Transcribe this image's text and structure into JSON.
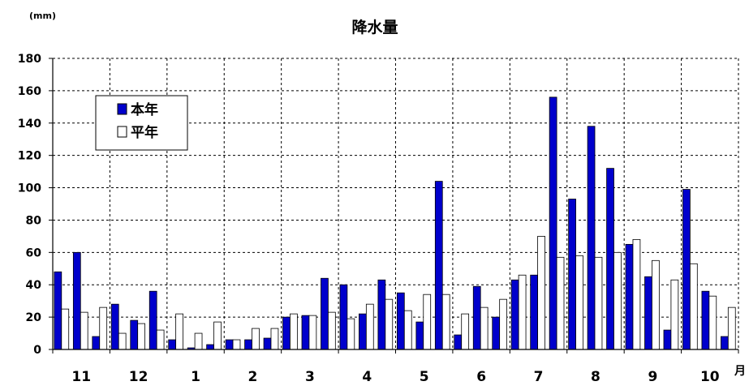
{
  "chart_data": {
    "type": "bar",
    "title": "降水量",
    "unit_label": "(mm)",
    "x_unit_label": "月",
    "ylim": [
      0,
      180
    ],
    "y_ticks": [
      0,
      20,
      40,
      60,
      80,
      100,
      120,
      140,
      160,
      180
    ],
    "grid": true,
    "legend_position": "top-left",
    "month_labels": [
      "11",
      "12",
      "1",
      "2",
      "3",
      "4",
      "5",
      "6",
      "7",
      "8",
      "9",
      "10"
    ],
    "periods_per_month": 3,
    "series": [
      {
        "name": "本年",
        "color": "#0000cc",
        "values": [
          48,
          60,
          8,
          28,
          18,
          36,
          6,
          1,
          3,
          6,
          6,
          7,
          20,
          21,
          44,
          40,
          22,
          43,
          35,
          17,
          104,
          9,
          39,
          20,
          43,
          46,
          156,
          93,
          138,
          112,
          65,
          45,
          12,
          99,
          36,
          8
        ]
      },
      {
        "name": "平年",
        "color": "#ffffff",
        "values": [
          25,
          23,
          26,
          10,
          16,
          12,
          22,
          10,
          17,
          6,
          13,
          13,
          22,
          21,
          23,
          19,
          28,
          31,
          24,
          34,
          34,
          22,
          26,
          31,
          46,
          70,
          57,
          58,
          57,
          60,
          68,
          55,
          43,
          53,
          33,
          26
        ]
      }
    ]
  }
}
